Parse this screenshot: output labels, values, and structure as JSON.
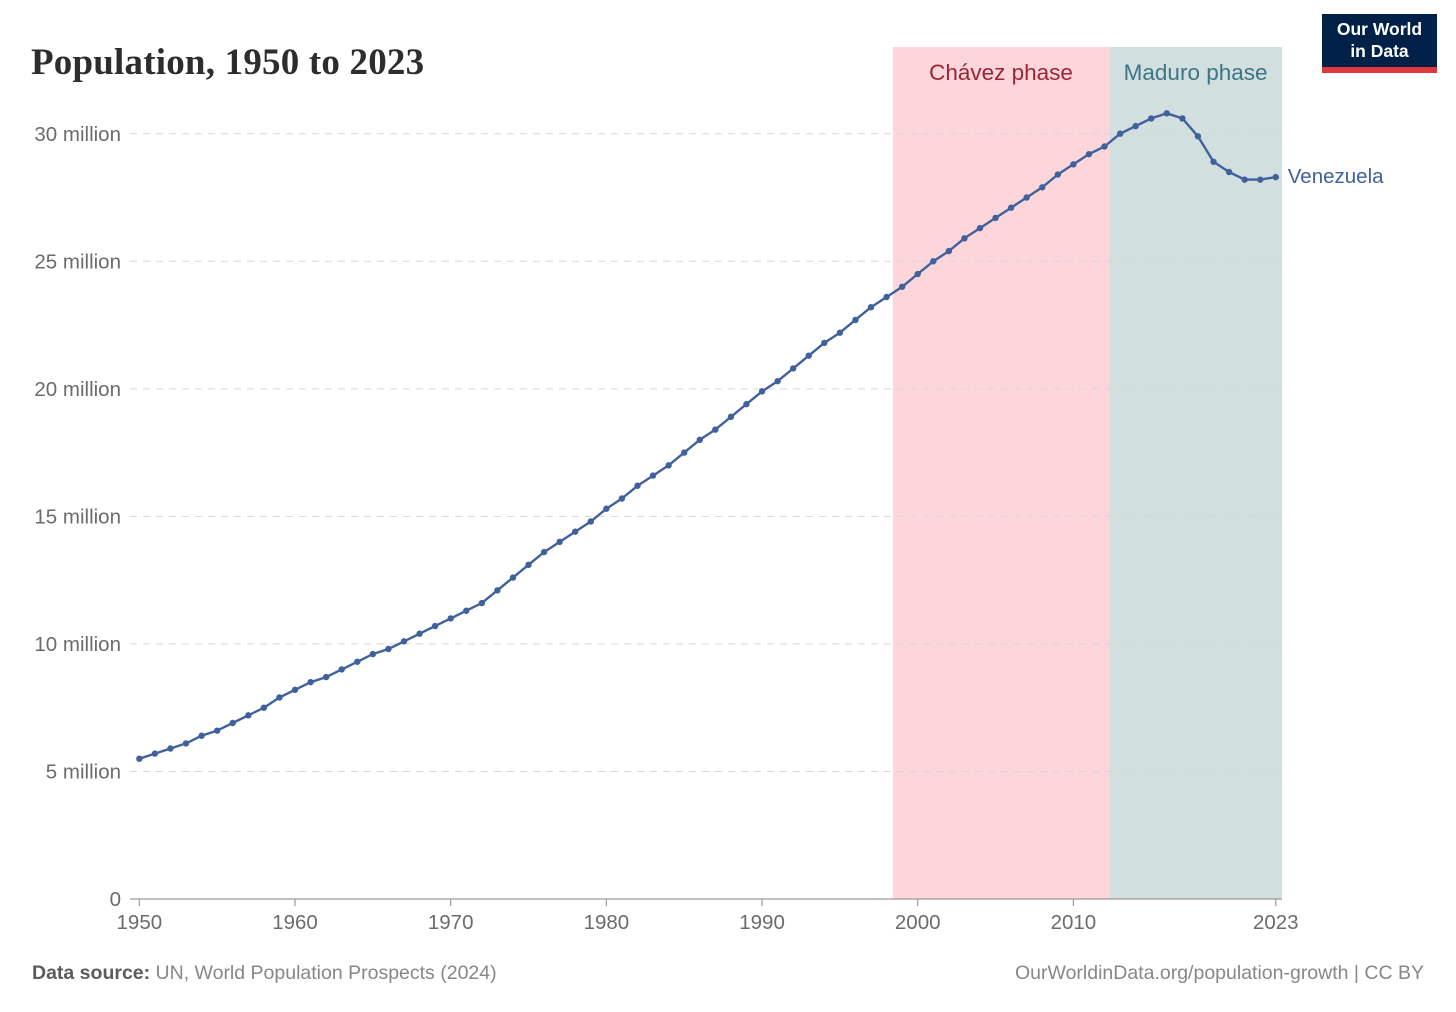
{
  "header": {
    "title": "Population, 1950 to 2023",
    "logo": {
      "line1": "Our World",
      "line2": "in Data",
      "bg_color": "#002147",
      "accent_color": "#e0383f"
    }
  },
  "chart_data": {
    "type": "line",
    "title": "Population, 1950 to 2023",
    "unit": "million people",
    "x": [
      1950,
      1951,
      1952,
      1953,
      1954,
      1955,
      1956,
      1957,
      1958,
      1959,
      1960,
      1961,
      1962,
      1963,
      1964,
      1965,
      1966,
      1967,
      1968,
      1969,
      1970,
      1971,
      1972,
      1973,
      1974,
      1975,
      1976,
      1977,
      1978,
      1979,
      1980,
      1981,
      1982,
      1983,
      1984,
      1985,
      1986,
      1987,
      1988,
      1989,
      1990,
      1991,
      1992,
      1993,
      1994,
      1995,
      1996,
      1997,
      1998,
      1999,
      2000,
      2001,
      2002,
      2003,
      2004,
      2005,
      2006,
      2007,
      2008,
      2009,
      2010,
      2011,
      2012,
      2013,
      2014,
      2015,
      2016,
      2017,
      2018,
      2019,
      2020,
      2021,
      2022,
      2023
    ],
    "series": [
      {
        "name": "Venezuela",
        "color": "#40619c",
        "values": [
          5.5,
          5.7,
          5.9,
          6.1,
          6.4,
          6.6,
          6.9,
          7.2,
          7.5,
          7.9,
          8.2,
          8.5,
          8.7,
          9.0,
          9.3,
          9.6,
          9.8,
          10.1,
          10.4,
          10.7,
          11.0,
          11.3,
          11.6,
          12.1,
          12.6,
          13.1,
          13.6,
          14.0,
          14.4,
          14.8,
          15.3,
          15.7,
          16.2,
          16.6,
          17.0,
          17.5,
          18.0,
          18.4,
          18.9,
          19.4,
          19.9,
          20.3,
          20.8,
          21.3,
          21.8,
          22.2,
          22.7,
          23.2,
          23.6,
          24.0,
          24.5,
          25.0,
          25.4,
          25.9,
          26.3,
          26.7,
          27.1,
          27.5,
          27.9,
          28.4,
          28.8,
          29.2,
          29.5,
          30.0,
          30.3,
          30.6,
          30.8,
          30.6,
          29.9,
          28.9,
          28.5,
          28.2,
          28.2,
          28.3
        ]
      }
    ],
    "xlim": [
      1949.4,
      2023.4
    ],
    "ylim": [
      0,
      33.4
    ],
    "x_ticks": [
      1950,
      1960,
      1970,
      1980,
      1990,
      2000,
      2010,
      2023
    ],
    "y_ticks": [
      {
        "value": 0,
        "label": "0"
      },
      {
        "value": 5,
        "label": "5 million"
      },
      {
        "value": 10,
        "label": "10 million"
      },
      {
        "value": 15,
        "label": "15 million"
      },
      {
        "value": 20,
        "label": "20 million"
      },
      {
        "value": 25,
        "label": "25 million"
      },
      {
        "value": 30,
        "label": "30 million"
      }
    ],
    "grid": "dashed horizontal gridlines",
    "legend_position": "end-of-line label",
    "phases": [
      {
        "label": "Chávez phase",
        "start": 1998.4,
        "end": 2012.3,
        "fill": "#fcd6da",
        "label_color": "#9e2333"
      },
      {
        "label": "Maduro phase",
        "start": 2012.3,
        "end": 2023.4,
        "fill": "#d1dfdf",
        "label_color": "#3d7486"
      }
    ],
    "end_label": "Venezuela"
  },
  "footer": {
    "source_label": "Data source:",
    "source_text": " UN, World Population Prospects (2024)",
    "link_text": "OurWorldinData.org/population-growth | CC BY"
  }
}
